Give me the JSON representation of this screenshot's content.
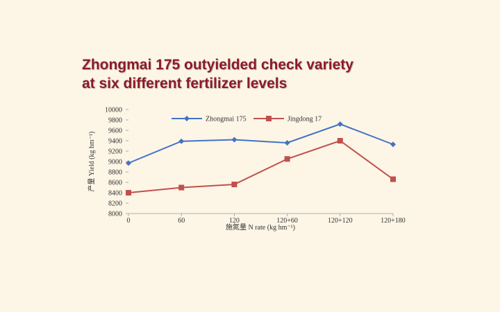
{
  "title": {
    "line1": "Zhongmai 175 outyielded check variety",
    "line2": "at six different fertilizer levels"
  },
  "colors": {
    "background": "#fdf5e6",
    "title": "#8b1a2b",
    "series_1": "#4472c4",
    "series_2": "#c0504d"
  },
  "chart_data": {
    "type": "line",
    "xlabel": "施氮量 N rate (kg hm⁻¹)",
    "ylabel": "产量 Yield (kg hm⁻¹)",
    "categories": [
      "0",
      "60",
      "120",
      "120+60",
      "120+120",
      "120+180"
    ],
    "ylim": [
      8000,
      10000
    ],
    "yticks": [
      8000,
      8200,
      8400,
      8600,
      8800,
      9000,
      9200,
      9400,
      9600,
      9800,
      10000
    ],
    "ytick_labels": [
      "8000",
      "8200",
      "8400",
      "8600",
      "8800",
      "9000",
      "9200",
      "9400",
      "9600",
      "9800",
      "10000"
    ],
    "grid": false,
    "legend_position": "top",
    "series": [
      {
        "name": "Zhongmai 175",
        "marker": "diamond",
        "values": [
          8970,
          9390,
          9420,
          9360,
          9720,
          9330
        ]
      },
      {
        "name": "Jingdong 17",
        "marker": "square",
        "values": [
          8400,
          8500,
          8560,
          9050,
          9400,
          8660
        ]
      }
    ]
  }
}
